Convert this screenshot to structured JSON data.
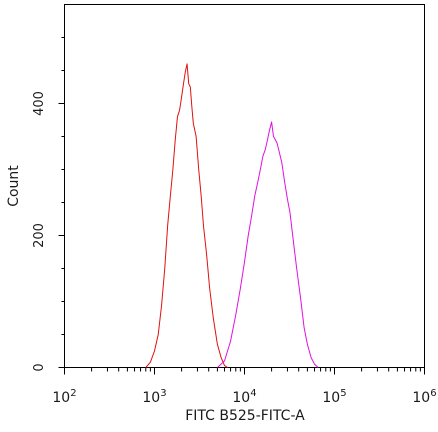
{
  "chart_data": {
    "type": "line",
    "title": "",
    "xlabel": "FITC B525-FITC-A",
    "ylabel": "Count",
    "x_scale": "log",
    "xlim": [
      100,
      1000000
    ],
    "ylim": [
      0,
      550
    ],
    "x_ticks": [
      {
        "value": 100,
        "base": "10",
        "exp": "2"
      },
      {
        "value": 1000,
        "base": "10",
        "exp": "3"
      },
      {
        "value": 10000,
        "base": "10",
        "exp": "4"
      },
      {
        "value": 100000,
        "base": "10",
        "exp": "5"
      },
      {
        "value": 1000000,
        "base": "10",
        "exp": "6"
      }
    ],
    "y_ticks": [
      {
        "value": 0,
        "label": "0"
      },
      {
        "value": 200,
        "label": "200"
      },
      {
        "value": 400,
        "label": "400"
      }
    ],
    "grid": false,
    "series": [
      {
        "color": "#e01010",
        "points": [
          [
            800,
            0
          ],
          [
            900,
            8
          ],
          [
            1000,
            25
          ],
          [
            1100,
            50
          ],
          [
            1200,
            95
          ],
          [
            1300,
            150
          ],
          [
            1400,
            215
          ],
          [
            1500,
            260
          ],
          [
            1600,
            300
          ],
          [
            1700,
            345
          ],
          [
            1800,
            380
          ],
          [
            1900,
            390
          ],
          [
            2000,
            410
          ],
          [
            2100,
            430
          ],
          [
            2200,
            448
          ],
          [
            2300,
            460
          ],
          [
            2400,
            430
          ],
          [
            2500,
            425
          ],
          [
            2600,
            395
          ],
          [
            2700,
            370
          ],
          [
            2900,
            350
          ],
          [
            3100,
            300
          ],
          [
            3300,
            260
          ],
          [
            3500,
            215
          ],
          [
            3800,
            170
          ],
          [
            4100,
            120
          ],
          [
            4500,
            75
          ],
          [
            5000,
            35
          ],
          [
            5500,
            15
          ],
          [
            6000,
            3
          ],
          [
            6500,
            0
          ]
        ]
      },
      {
        "color": "#e010e0",
        "points": [
          [
            5000,
            0
          ],
          [
            6000,
            10
          ],
          [
            7000,
            40
          ],
          [
            8000,
            80
          ],
          [
            9000,
            120
          ],
          [
            10000,
            160
          ],
          [
            11000,
            200
          ],
          [
            12000,
            230
          ],
          [
            13000,
            260
          ],
          [
            14000,
            280
          ],
          [
            15000,
            300
          ],
          [
            16000,
            320
          ],
          [
            17000,
            330
          ],
          [
            18000,
            345
          ],
          [
            19000,
            360
          ],
          [
            20000,
            372
          ],
          [
            21000,
            350
          ],
          [
            22000,
            345
          ],
          [
            23000,
            340
          ],
          [
            24000,
            330
          ],
          [
            26000,
            310
          ],
          [
            28000,
            280
          ],
          [
            30000,
            255
          ],
          [
            32000,
            235
          ],
          [
            35000,
            190
          ],
          [
            38000,
            150
          ],
          [
            42000,
            105
          ],
          [
            46000,
            60
          ],
          [
            50000,
            35
          ],
          [
            55000,
            15
          ],
          [
            60000,
            5
          ],
          [
            66000,
            0
          ]
        ]
      }
    ]
  }
}
